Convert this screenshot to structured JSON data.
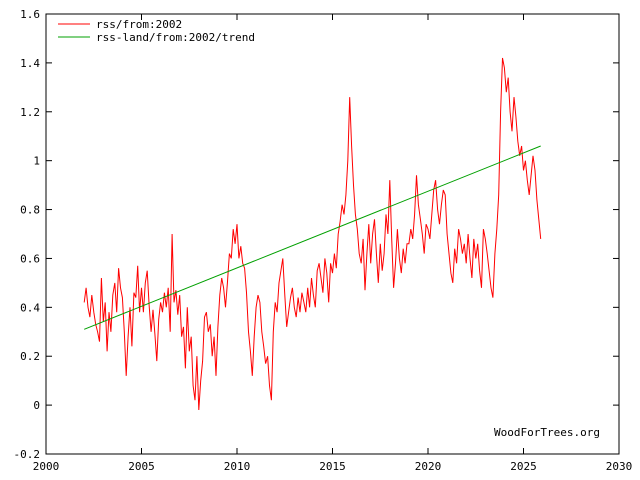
{
  "chart_data": {
    "type": "line",
    "title": "",
    "xlabel": "",
    "ylabel": "",
    "xlim": [
      2000,
      2030
    ],
    "ylim": [
      -0.2,
      1.6
    ],
    "x_ticks": [
      2000,
      2005,
      2010,
      2015,
      2020,
      2025,
      2030
    ],
    "y_ticks": [
      -0.2,
      0,
      0.2,
      0.4,
      0.6,
      0.8,
      1,
      1.2,
      1.4,
      1.6
    ],
    "x_tick_labels": [
      "2000",
      "2005",
      "2010",
      "2015",
      "2020",
      "2025",
      "2030"
    ],
    "y_tick_labels": [
      "-0.2",
      "0",
      "0.2",
      "0.4",
      "0.6",
      "0.8",
      "1",
      "1.2",
      "1.4",
      "1.6"
    ],
    "grid": false,
    "legend_position": "top-left",
    "watermark": "WoodForTrees.org",
    "series": [
      {
        "name": "rss/from:2002",
        "color": "#ff0000",
        "x": [
          2002.0,
          2002.1,
          2002.2,
          2002.3,
          2002.4,
          2002.5,
          2002.6,
          2002.7,
          2002.8,
          2002.9,
          2003.0,
          2003.1,
          2003.2,
          2003.3,
          2003.4,
          2003.5,
          2003.6,
          2003.7,
          2003.8,
          2003.9,
          2004.0,
          2004.1,
          2004.2,
          2004.3,
          2004.4,
          2004.5,
          2004.6,
          2004.7,
          2004.8,
          2004.9,
          2005.0,
          2005.1,
          2005.2,
          2005.3,
          2005.4,
          2005.5,
          2005.6,
          2005.7,
          2005.8,
          2005.9,
          2006.0,
          2006.1,
          2006.2,
          2006.3,
          2006.4,
          2006.5,
          2006.6,
          2006.7,
          2006.8,
          2006.9,
          2007.0,
          2007.1,
          2007.2,
          2007.3,
          2007.4,
          2007.5,
          2007.6,
          2007.7,
          2007.8,
          2007.9,
          2008.0,
          2008.1,
          2008.2,
          2008.3,
          2008.4,
          2008.5,
          2008.6,
          2008.7,
          2008.8,
          2008.9,
          2009.0,
          2009.1,
          2009.2,
          2009.3,
          2009.4,
          2009.5,
          2009.6,
          2009.7,
          2009.8,
          2009.9,
          2010.0,
          2010.1,
          2010.2,
          2010.3,
          2010.4,
          2010.5,
          2010.6,
          2010.7,
          2010.8,
          2010.9,
          2011.0,
          2011.1,
          2011.2,
          2011.3,
          2011.4,
          2011.5,
          2011.6,
          2011.7,
          2011.8,
          2011.9,
          2012.0,
          2012.1,
          2012.2,
          2012.3,
          2012.4,
          2012.5,
          2012.6,
          2012.7,
          2012.8,
          2012.9,
          2013.0,
          2013.1,
          2013.2,
          2013.3,
          2013.4,
          2013.5,
          2013.6,
          2013.7,
          2013.8,
          2013.9,
          2014.0,
          2014.1,
          2014.2,
          2014.3,
          2014.4,
          2014.5,
          2014.6,
          2014.7,
          2014.8,
          2014.9,
          2015.0,
          2015.1,
          2015.2,
          2015.3,
          2015.4,
          2015.5,
          2015.6,
          2015.7,
          2015.8,
          2015.9,
          2016.0,
          2016.1,
          2016.2,
          2016.3,
          2016.4,
          2016.5,
          2016.6,
          2016.7,
          2016.8,
          2016.9,
          2017.0,
          2017.1,
          2017.2,
          2017.3,
          2017.4,
          2017.5,
          2017.6,
          2017.7,
          2017.8,
          2017.9,
          2018.0,
          2018.1,
          2018.2,
          2018.3,
          2018.4,
          2018.5,
          2018.6,
          2018.7,
          2018.8,
          2018.9,
          2019.0,
          2019.1,
          2019.2,
          2019.3,
          2019.4,
          2019.5,
          2019.6,
          2019.7,
          2019.8,
          2019.9,
          2020.0,
          2020.1,
          2020.2,
          2020.3,
          2020.4,
          2020.5,
          2020.6,
          2020.7,
          2020.8,
          2020.9,
          2021.0,
          2021.1,
          2021.2,
          2021.3,
          2021.4,
          2021.5,
          2021.6,
          2021.7,
          2021.8,
          2021.9,
          2022.0,
          2022.1,
          2022.2,
          2022.3,
          2022.4,
          2022.5,
          2022.6,
          2022.7,
          2022.8,
          2022.9,
          2023.0,
          2023.1,
          2023.2,
          2023.3,
          2023.4,
          2023.5,
          2023.6,
          2023.7,
          2023.8,
          2023.9,
          2024.0,
          2024.1,
          2024.2,
          2024.3,
          2024.4,
          2024.5,
          2024.6,
          2024.7,
          2024.8,
          2024.9,
          2025.0,
          2025.1,
          2025.2,
          2025.3,
          2025.4,
          2025.5,
          2025.6,
          2025.7,
          2025.8,
          2025.9
        ],
        "y": [
          0.42,
          0.48,
          0.4,
          0.36,
          0.45,
          0.38,
          0.33,
          0.3,
          0.26,
          0.52,
          0.34,
          0.42,
          0.22,
          0.38,
          0.3,
          0.45,
          0.5,
          0.38,
          0.56,
          0.48,
          0.44,
          0.3,
          0.12,
          0.28,
          0.4,
          0.24,
          0.46,
          0.44,
          0.57,
          0.38,
          0.48,
          0.38,
          0.5,
          0.55,
          0.41,
          0.3,
          0.39,
          0.29,
          0.18,
          0.35,
          0.42,
          0.38,
          0.46,
          0.4,
          0.48,
          0.3,
          0.7,
          0.42,
          0.47,
          0.37,
          0.45,
          0.28,
          0.32,
          0.15,
          0.4,
          0.22,
          0.28,
          0.08,
          0.02,
          0.2,
          -0.02,
          0.1,
          0.18,
          0.36,
          0.38,
          0.3,
          0.33,
          0.2,
          0.28,
          0.12,
          0.32,
          0.45,
          0.52,
          0.48,
          0.4,
          0.5,
          0.62,
          0.6,
          0.72,
          0.66,
          0.74,
          0.6,
          0.65,
          0.58,
          0.56,
          0.46,
          0.3,
          0.22,
          0.12,
          0.28,
          0.4,
          0.45,
          0.42,
          0.3,
          0.24,
          0.17,
          0.2,
          0.08,
          0.02,
          0.3,
          0.42,
          0.38,
          0.5,
          0.55,
          0.6,
          0.45,
          0.32,
          0.38,
          0.44,
          0.48,
          0.4,
          0.36,
          0.44,
          0.38,
          0.46,
          0.42,
          0.38,
          0.48,
          0.4,
          0.52,
          0.45,
          0.4,
          0.55,
          0.58,
          0.52,
          0.46,
          0.6,
          0.54,
          0.42,
          0.58,
          0.54,
          0.62,
          0.56,
          0.7,
          0.75,
          0.82,
          0.78,
          0.86,
          1.0,
          1.26,
          1.06,
          0.9,
          0.78,
          0.72,
          0.62,
          0.58,
          0.68,
          0.47,
          0.62,
          0.74,
          0.58,
          0.7,
          0.76,
          0.62,
          0.5,
          0.66,
          0.55,
          0.62,
          0.78,
          0.7,
          0.92,
          0.68,
          0.48,
          0.58,
          0.72,
          0.6,
          0.54,
          0.64,
          0.58,
          0.66,
          0.66,
          0.72,
          0.68,
          0.78,
          0.94,
          0.82,
          0.76,
          0.7,
          0.62,
          0.74,
          0.72,
          0.68,
          0.78,
          0.88,
          0.92,
          0.8,
          0.74,
          0.82,
          0.88,
          0.86,
          0.7,
          0.62,
          0.54,
          0.5,
          0.64,
          0.58,
          0.72,
          0.68,
          0.62,
          0.66,
          0.58,
          0.7,
          0.6,
          0.52,
          0.68,
          0.6,
          0.66,
          0.55,
          0.48,
          0.72,
          0.68,
          0.62,
          0.55,
          0.48,
          0.44,
          0.62,
          0.72,
          0.86,
          1.2,
          1.42,
          1.38,
          1.28,
          1.34,
          1.2,
          1.12,
          1.26,
          1.18,
          1.08,
          1.02,
          1.06,
          0.96,
          1.0,
          0.92,
          0.86,
          0.94,
          1.02,
          0.96,
          0.84,
          0.76,
          0.68
        ]
      },
      {
        "name": "rss-land/from:2002/trend",
        "color": "#00a000",
        "x": [
          2002.0,
          2025.9
        ],
        "y": [
          0.31,
          1.06
        ]
      }
    ]
  }
}
